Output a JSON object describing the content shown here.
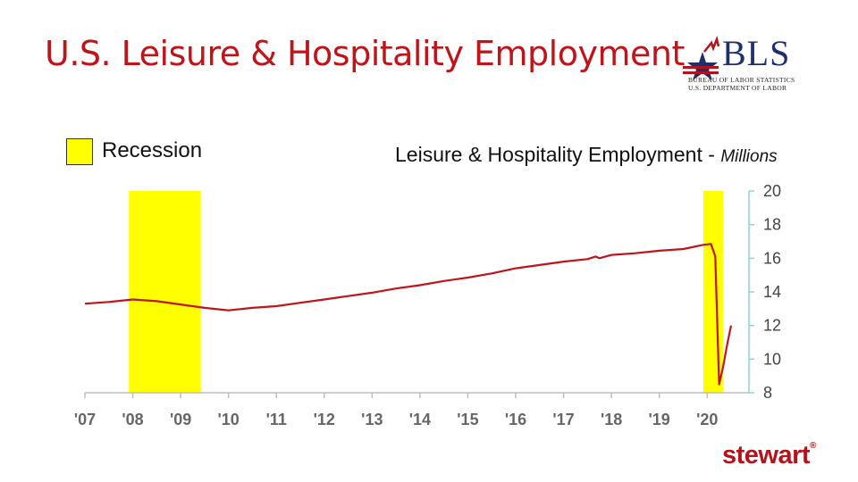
{
  "slide": {
    "title": "U.S. Leisure & Hospitality Employment",
    "legend_label": "Recession",
    "series_title": "Leisure & Hospitality Employment - ",
    "series_unit": "Millions",
    "bls_logo_text": "BLS",
    "bls_line1": "BUREAU OF LABOR STATISTICS",
    "bls_line2": "U.S. DEPARTMENT OF LABOR",
    "footer_logo": "stewart"
  },
  "colors": {
    "title": "#c0141b",
    "line": "#c0141b",
    "recession": "#ffff00",
    "right_axis": "#8fd3d3"
  },
  "chart_data": {
    "type": "line",
    "title": "Leisure & Hospitality Employment - Millions",
    "xlabel": "",
    "ylabel": "",
    "x_tick_labels": [
      "'07",
      "'08",
      "'09",
      "'10",
      "'11",
      "'12",
      "'13",
      "'14",
      "'15",
      "'16",
      "'17",
      "'18",
      "'19",
      "'20"
    ],
    "xlim": [
      2007.0,
      2020.5
    ],
    "ylim": [
      8,
      20
    ],
    "y_ticks": [
      8,
      10,
      12,
      14,
      16,
      18,
      20
    ],
    "y_axis_side": "right",
    "grid": false,
    "legend": {
      "label": "Recession",
      "position": "top-left"
    },
    "recessions": [
      [
        2007.92,
        2009.42
      ],
      [
        2019.92,
        2020.33
      ]
    ],
    "series": [
      {
        "x": [
          2007.0,
          2007.5,
          2008.0,
          2008.5,
          2009.0,
          2009.5,
          2010.0,
          2010.5,
          2011.0,
          2011.5,
          2012.0,
          2012.5,
          2013.0,
          2013.5,
          2014.0,
          2014.5,
          2015.0,
          2015.5,
          2016.0,
          2016.5,
          2017.0,
          2017.5,
          2017.67,
          2017.75,
          2018.0,
          2018.5,
          2019.0,
          2019.5,
          2019.92,
          2020.08,
          2020.17,
          2020.25,
          2020.33,
          2020.42,
          2020.5
        ],
        "values": [
          13.3,
          13.4,
          13.55,
          13.45,
          13.25,
          13.05,
          12.9,
          13.05,
          13.15,
          13.35,
          13.55,
          13.75,
          13.95,
          14.2,
          14.4,
          14.65,
          14.85,
          15.1,
          15.4,
          15.6,
          15.8,
          15.95,
          16.1,
          16.0,
          16.2,
          16.3,
          16.45,
          16.55,
          16.8,
          16.85,
          16.1,
          8.5,
          9.5,
          10.9,
          12.0
        ]
      }
    ]
  }
}
